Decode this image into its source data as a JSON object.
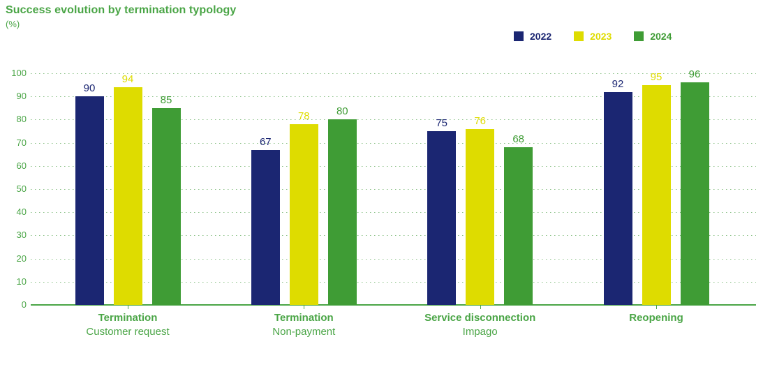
{
  "chart_data": {
    "type": "bar",
    "title": "Success evolution by termination typology",
    "ylabel": "(%)",
    "xlabel": "",
    "ylim": [
      0,
      100
    ],
    "ytick_step": 10,
    "grid": "horizontal-dotted",
    "legend_position": "top-right",
    "categories": [
      {
        "label": "Termination",
        "sublabel": "Customer request"
      },
      {
        "label": "Termination",
        "sublabel": "Non-payment"
      },
      {
        "label": "Service disconnection",
        "sublabel": "Impago"
      },
      {
        "label": "Reopening",
        "sublabel": ""
      }
    ],
    "series": [
      {
        "name": "2022",
        "color": "#1b2672",
        "values": [
          90,
          67,
          75,
          92
        ]
      },
      {
        "name": "2023",
        "color": "#dedc00",
        "values": [
          94,
          78,
          76,
          95
        ]
      },
      {
        "name": "2024",
        "color": "#3f9c35",
        "values": [
          85,
          80,
          68,
          96
        ]
      }
    ],
    "colors": {
      "title_text": "#4aa546",
      "axis_text": "#4aa546",
      "category_text": "#4aa546",
      "gridline": "#8bc187",
      "axis_line": "#4aa546"
    }
  }
}
